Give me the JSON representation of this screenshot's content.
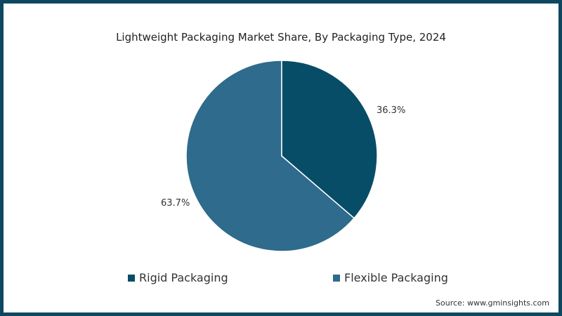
{
  "title": "Lightweight Packaging Market Share, By Packaging Type, 2024",
  "source": "Source: www.gminsights.com",
  "colors": {
    "border": "#0e4760",
    "rigid": "#084d68",
    "flexible": "#2e6b8c"
  },
  "labels": {
    "rigid": "36.3%",
    "flexible": "63.7%"
  },
  "legend": [
    {
      "label": "Rigid Packaging",
      "color": "#084d68"
    },
    {
      "label": "Flexible Packaging",
      "color": "#2e6b8c"
    }
  ],
  "chart_data": {
    "type": "pie",
    "title": "Lightweight Packaging Market Share, By Packaging Type, 2024",
    "categories": [
      "Rigid Packaging",
      "Flexible Packaging"
    ],
    "values": [
      36.3,
      63.7
    ],
    "unit": "%",
    "colors": [
      "#084d68",
      "#2e6b8c"
    ],
    "legend_position": "bottom",
    "start_angle": "12 o'clock, clockwise"
  }
}
